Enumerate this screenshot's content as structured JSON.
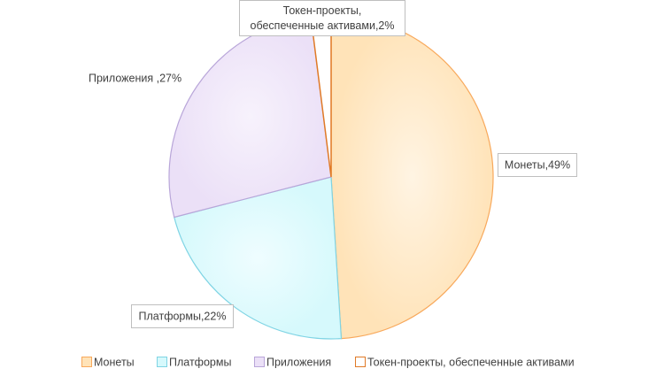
{
  "chart_data": {
    "type": "pie",
    "categories": [
      "Монеты",
      "Платформы",
      "Приложения",
      "Токен-проекты, обеспеченные активами"
    ],
    "values": [
      49,
      22,
      27,
      2
    ],
    "data_labels": [
      [
        "Монеты,49%"
      ],
      [
        "Платформы,22%"
      ],
      [
        "Приложения ,27%"
      ],
      [
        "Токен-проекты,",
        "обеспеченные активами,2%"
      ]
    ],
    "legend": {
      "position": "bottom",
      "entries": [
        "Монеты",
        "Платформы",
        "Приложения",
        "Токен-проекты, обеспеченные активами"
      ]
    },
    "colors": {
      "fills": [
        "#ffe3b8",
        "#d6f9fc",
        "#ebe0f7",
        "#ffffff"
      ],
      "fills_light": [
        "#fff4e3",
        "#effdff",
        "#f7f2fc",
        "#ffffff"
      ],
      "strokes": [
        "#f8a95c",
        "#7fd4e4",
        "#b9a6d9",
        "#e07a27"
      ]
    }
  }
}
